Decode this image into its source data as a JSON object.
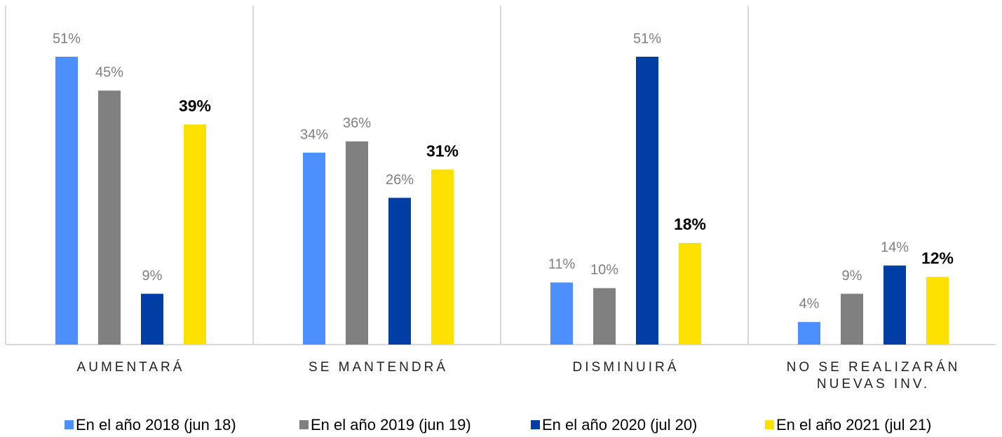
{
  "chart_data": {
    "type": "bar",
    "categories": [
      "AUMENTARÁ",
      "SE MANTENDRÁ",
      "DISMINUIRÁ",
      "NO SE REALIZARÁN\nNUEVAS INV."
    ],
    "series": [
      {
        "name": "En el año 2018 (jun 18)",
        "color": "#4d8ffe",
        "values": [
          51,
          34,
          11,
          4
        ],
        "value_labels": [
          "51%",
          "34%",
          "11%",
          "4%"
        ]
      },
      {
        "name": "En el año 2019 (jun 19)",
        "color": "#808080",
        "values": [
          45,
          36,
          10,
          9
        ],
        "value_labels": [
          "45%",
          "36%",
          "10%",
          "9%"
        ]
      },
      {
        "name": "En el año 2020 (jul 20)",
        "color": "#003da5",
        "values": [
          9,
          26,
          51,
          14
        ],
        "value_labels": [
          "9%",
          "26%",
          "51%",
          "14%"
        ]
      },
      {
        "name": "En el año 2021 (jul 21)",
        "color": "#ffe100",
        "values": [
          39,
          31,
          18,
          12
        ],
        "value_labels": [
          "39%",
          "31%",
          "18%",
          "12%"
        ]
      }
    ],
    "legend": "bottom"
  }
}
